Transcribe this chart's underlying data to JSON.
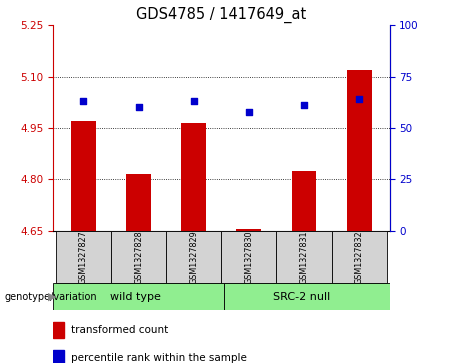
{
  "title": "GDS4785 / 1417649_at",
  "samples": [
    "GSM1327827",
    "GSM1327828",
    "GSM1327829",
    "GSM1327830",
    "GSM1327831",
    "GSM1327832"
  ],
  "bar_values": [
    4.97,
    4.815,
    4.965,
    4.655,
    4.825,
    5.12
  ],
  "percentile_values": [
    63,
    60,
    63,
    58,
    61,
    64
  ],
  "ylim_left": [
    4.65,
    5.25
  ],
  "ylim_right": [
    0,
    100
  ],
  "yticks_left": [
    4.65,
    4.8,
    4.95,
    5.1,
    5.25
  ],
  "yticks_right": [
    0,
    25,
    50,
    75,
    100
  ],
  "bar_bottom": 4.65,
  "bar_color": "#cc0000",
  "dot_color": "#0000cc",
  "group1_label": "wild type",
  "group2_label": "SRC-2 null",
  "group1_color": "#90ee90",
  "group2_color": "#90ee90",
  "label_genotype": "genotype/variation",
  "legend_bar_label": "transformed count",
  "legend_dot_label": "percentile rank within the sample",
  "bg_color": "#d3d3d3",
  "plot_bg": "#ffffff",
  "gridline_ticks": [
    4.8,
    4.95,
    5.1
  ],
  "tick_fontsize": 7.5,
  "title_fontsize": 10.5
}
